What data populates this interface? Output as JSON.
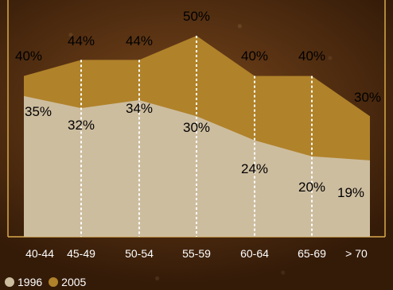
{
  "chart_data": {
    "type": "area",
    "categories": [
      "40-44",
      "45-49",
      "50-54",
      "55-59",
      "60-64",
      "65-69",
      "> 70"
    ],
    "series": [
      {
        "name": "1996",
        "values": [
          35,
          32,
          34,
          30,
          24,
          20,
          19
        ],
        "labels": [
          "35%",
          "32%",
          "34%",
          "30%",
          "24%",
          "20%",
          "19%"
        ],
        "color": "#cdbd9f"
      },
      {
        "name": "2005",
        "values": [
          40,
          44,
          44,
          50,
          40,
          40,
          30
        ],
        "labels": [
          "40%",
          "44%",
          "44%",
          "50%",
          "40%",
          "40%",
          "30%"
        ],
        "color": "#b0822a"
      }
    ],
    "ylim": [
      0,
      50
    ],
    "grid": false,
    "legend": "bottom-left",
    "colors": {
      "background": "#4a2a10",
      "frame": "#d9aa4a",
      "drop_lines": "#ffffff"
    }
  }
}
